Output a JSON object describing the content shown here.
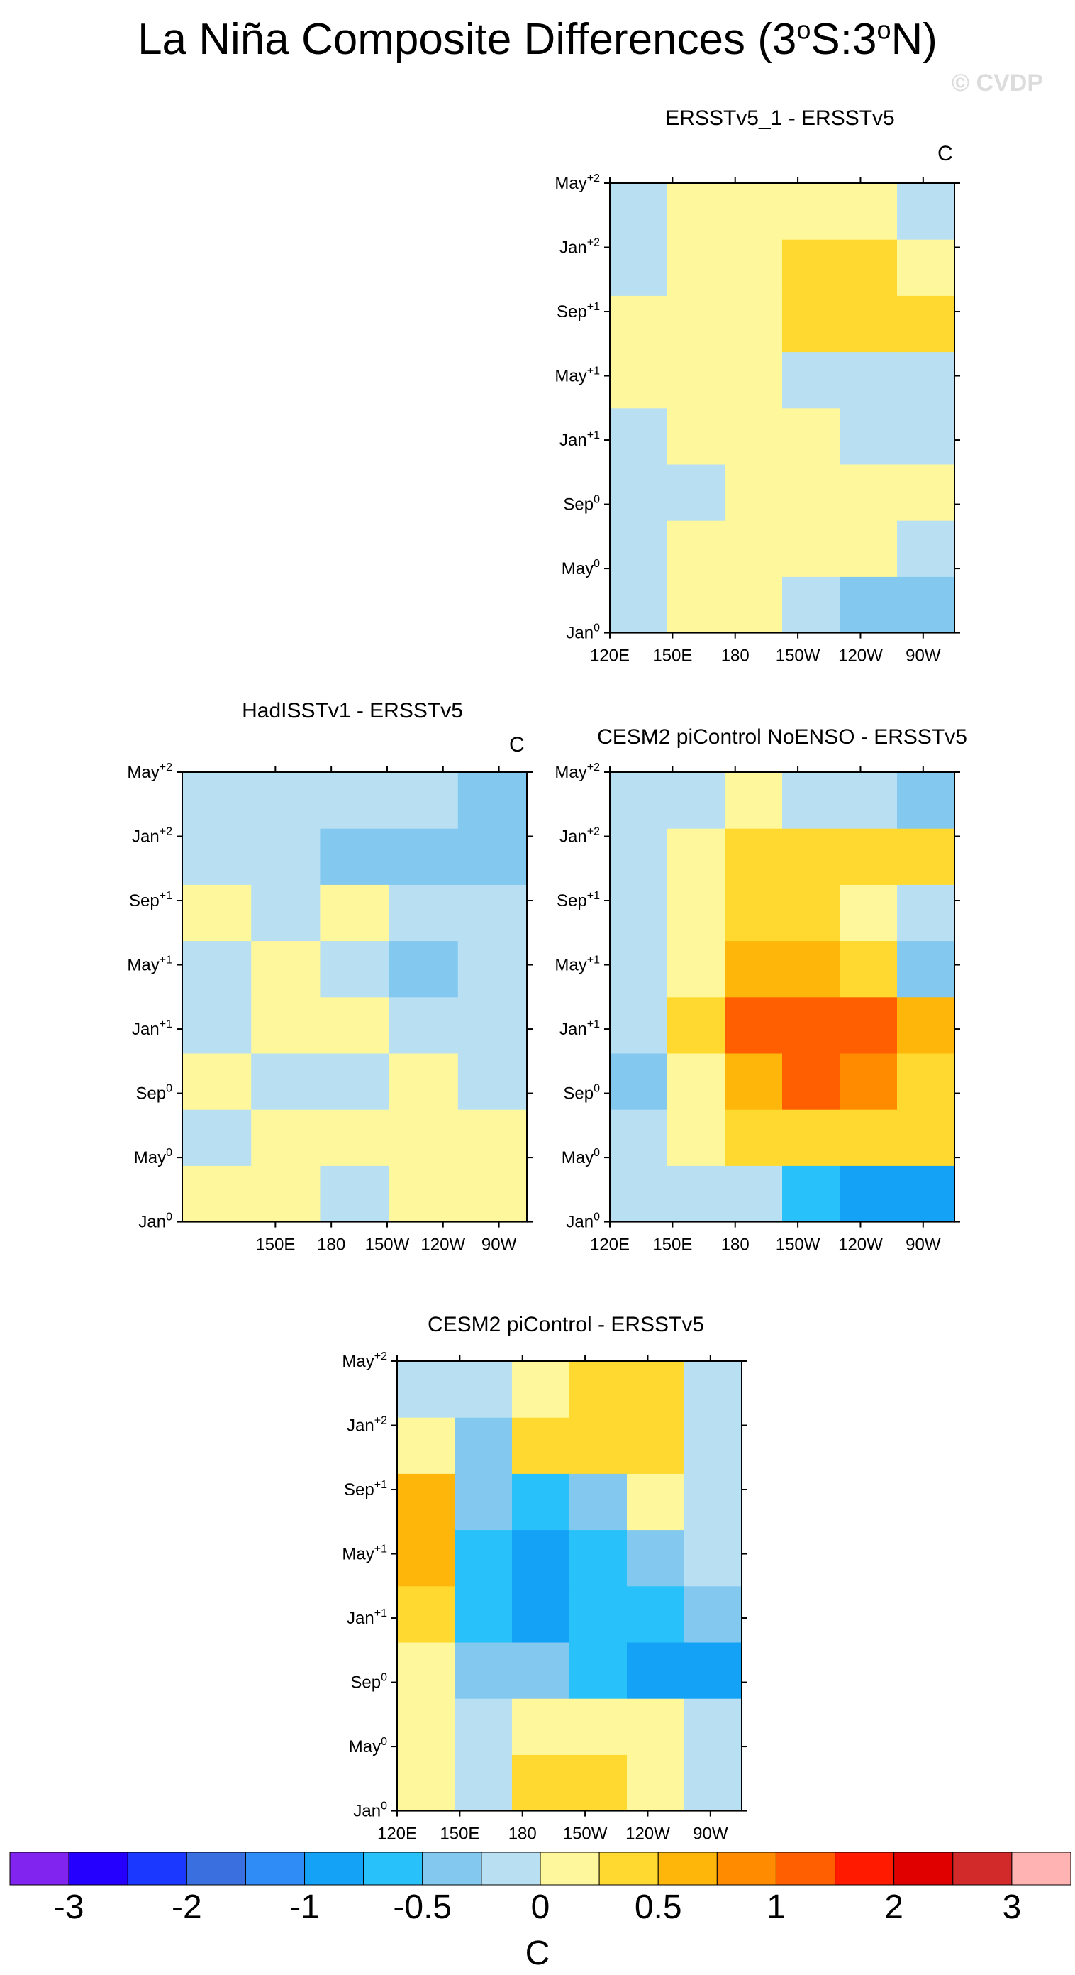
{
  "title_main": "La Niña Composite Differences (3",
  "title_sup1": "o",
  "title_mid": "S:3",
  "title_sup2": "o",
  "title_end": "N)",
  "watermark": "© CVDP",
  "units": "C",
  "palette": [
    "#8224f0",
    "#2600ff",
    "#1a38ff",
    "#3a6fe0",
    "#2f8cf7",
    "#14a2f7",
    "#28c1f9",
    "#82c8ef",
    "#b8e0f2",
    "#fff79b",
    "#ffd92f",
    "#ffb60a",
    "#ff8b00",
    "#ff5f00",
    "#ff1a00",
    "#e00000",
    "#d22a2a",
    "#ffb3b3"
  ],
  "colorbar": {
    "labels": [
      "-3",
      "-2",
      "-1",
      "-0.5",
      "0",
      "0.5",
      "1",
      "2",
      "3"
    ],
    "units": "C"
  },
  "y_ticks": [
    {
      "base": "Jan",
      "sup": "0"
    },
    {
      "base": "May",
      "sup": "0"
    },
    {
      "base": "Sep",
      "sup": "0"
    },
    {
      "base": "Jan",
      "sup": "+1"
    },
    {
      "base": "May",
      "sup": "+1"
    },
    {
      "base": "Sep",
      "sup": "+1"
    },
    {
      "base": "Jan",
      "sup": "+2"
    },
    {
      "base": "May",
      "sup": "+2"
    }
  ],
  "x_ticks_full": [
    "120E",
    "150E",
    "180",
    "150W",
    "120W",
    "90W"
  ],
  "x_ticks_had": [
    "150E",
    "180",
    "150W",
    "120W",
    "90W"
  ],
  "panels": [
    {
      "id": "p1",
      "title": "ERSSTv5_1 - ERSSTv5",
      "show_units": true
    },
    {
      "id": "p2",
      "title": "HadISSTv1 - ERSSTv5",
      "show_units": true
    },
    {
      "id": "p3",
      "title": "CESM2 piControl NoENSO - ERSSTv5",
      "show_units": false
    },
    {
      "id": "p4",
      "title": "CESM2 piControl - ERSSTv5",
      "show_units": false
    }
  ],
  "chart_data": [
    {
      "type": "heatmap",
      "title": "ERSSTv5_1 - ERSSTv5",
      "x": [
        "120E",
        "150E",
        "180",
        "150W",
        "120W",
        "90W"
      ],
      "y": [
        "Jan0",
        "May0",
        "Sep0",
        "Jan+1",
        "May+1",
        "Sep+1",
        "Jan+2",
        "May+2"
      ],
      "z": [
        [
          -0.2,
          0.1,
          0.1,
          -0.1,
          -0.3,
          -0.3
        ],
        [
          -0.1,
          0.2,
          0.2,
          0.1,
          0.1,
          -0.1
        ],
        [
          -0.1,
          -0.1,
          0.1,
          0.1,
          0.1,
          0.1
        ],
        [
          -0.1,
          0.1,
          0.1,
          0.1,
          -0.1,
          -0.1
        ],
        [
          0.1,
          0.1,
          0.1,
          -0.1,
          -0.1,
          -0.1
        ],
        [
          0.1,
          0.1,
          0.2,
          0.3,
          0.3,
          0.4
        ],
        [
          -0.1,
          0.1,
          0.1,
          0.3,
          0.3,
          0.2
        ],
        [
          -0.1,
          0.1,
          0.1,
          0.1,
          0.1,
          -0.1
        ]
      ]
    },
    {
      "type": "heatmap",
      "title": "HadISSTv1 - ERSSTv5",
      "x": [
        "150E",
        "180",
        "150W",
        "120W",
        "90W"
      ],
      "y": [
        "Jan0",
        "May0",
        "Sep0",
        "Jan+1",
        "May+1",
        "Sep+1",
        "Jan+2",
        "May+2"
      ],
      "z": [
        [
          0.1,
          0.1,
          -0.1,
          0.1,
          0.1
        ],
        [
          -0.1,
          0.1,
          0.1,
          0.1,
          0.2
        ],
        [
          0.1,
          -0.1,
          -0.1,
          0.1,
          -0.1
        ],
        [
          -0.1,
          0.1,
          0.1,
          -0.1,
          -0.1
        ],
        [
          -0.1,
          0.1,
          -0.1,
          -0.3,
          -0.1
        ],
        [
          0.1,
          -0.1,
          0.1,
          -0.1,
          -0.1
        ],
        [
          -0.1,
          -0.1,
          -0.3,
          -0.3,
          -0.3
        ],
        [
          -0.1,
          -0.1,
          -0.1,
          -0.1,
          -0.3
        ]
      ]
    },
    {
      "type": "heatmap",
      "title": "CESM2 piControl NoENSO - ERSSTv5",
      "x": [
        "120E",
        "150E",
        "180",
        "150W",
        "120W",
        "90W"
      ],
      "y": [
        "Jan0",
        "May0",
        "Sep0",
        "Jan+1",
        "May+1",
        "Sep+1",
        "Jan+2",
        "May+2"
      ],
      "z": [
        [
          -0.1,
          -0.1,
          -0.1,
          -0.7,
          -0.9,
          -0.9
        ],
        [
          -0.1,
          0.1,
          0.5,
          0.5,
          0.4,
          0.3
        ],
        [
          -0.3,
          0.1,
          0.6,
          1.1,
          0.8,
          0.5
        ],
        [
          -0.1,
          0.3,
          1.2,
          1.3,
          1.1,
          0.6
        ],
        [
          -0.1,
          0.2,
          0.7,
          0.6,
          0.4,
          -0.3
        ],
        [
          -0.1,
          0.1,
          0.4,
          0.3,
          0.1,
          -0.1
        ],
        [
          -0.1,
          0.1,
          0.3,
          0.4,
          0.3,
          0.3
        ],
        [
          -0.1,
          -0.1,
          0.1,
          -0.1,
          -0.1,
          -0.3
        ]
      ]
    },
    {
      "type": "heatmap",
      "title": "CESM2 piControl - ERSSTv5",
      "x": [
        "120E",
        "150E",
        "180",
        "150W",
        "120W",
        "90W"
      ],
      "y": [
        "Jan0",
        "May0",
        "Sep0",
        "Jan+1",
        "May+1",
        "Sep+1",
        "Jan+2",
        "May+2"
      ],
      "z": [
        [
          0.1,
          -0.1,
          0.3,
          0.4,
          0.1,
          -0.1
        ],
        [
          0.1,
          -0.1,
          0.2,
          0.2,
          0.1,
          -0.1
        ],
        [
          0.1,
          -0.3,
          -0.4,
          -0.7,
          -0.9,
          -0.8
        ],
        [
          0.4,
          -0.7,
          -0.8,
          -0.7,
          -0.7,
          -0.3
        ],
        [
          0.6,
          -0.7,
          -0.9,
          -0.7,
          -0.4,
          -0.1
        ],
        [
          0.6,
          -0.3,
          -0.6,
          -0.3,
          0.1,
          -0.1
        ],
        [
          0.1,
          -0.3,
          0.3,
          0.3,
          0.4,
          -0.1
        ],
        [
          -0.1,
          -0.1,
          0.1,
          0.3,
          0.3,
          -0.1
        ]
      ]
    }
  ]
}
